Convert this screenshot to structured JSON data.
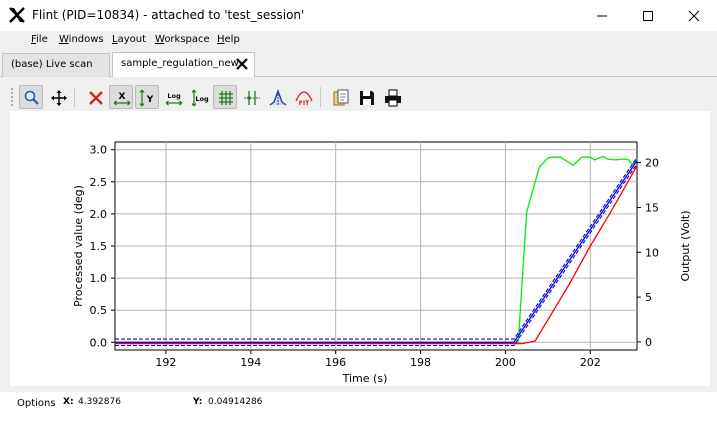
{
  "window": {
    "title": "Flint (PID=10834) - attached to 'test_session'",
    "controls": [
      "minimize",
      "maximize",
      "close"
    ]
  },
  "menu": [
    {
      "first": "F",
      "rest": "ile"
    },
    {
      "first": "W",
      "rest": "indows"
    },
    {
      "first": "L",
      "rest": "ayout"
    },
    {
      "first": "W",
      "rest": "orkspace"
    },
    {
      "first": "H",
      "rest": "elp"
    }
  ],
  "tabs": [
    {
      "label": "(base) Live scan",
      "active": false
    },
    {
      "label": "sample_regulation_new",
      "active": true,
      "closable": true
    }
  ],
  "toolbar": {
    "buttons": [
      {
        "icon": "zoom-icon",
        "checked": true
      },
      {
        "icon": "pan-icon",
        "checked": false
      },
      {
        "icon": "clear-icon",
        "checked": false
      },
      {
        "icon": "autoscale-x-icon",
        "checked": true,
        "text": "X"
      },
      {
        "icon": "autoscale-y-icon",
        "checked": true,
        "text": "Y"
      },
      {
        "icon": "log-x-icon",
        "checked": false,
        "text": "Log"
      },
      {
        "icon": "log-y-icon",
        "checked": false,
        "text": "Log"
      },
      {
        "icon": "grid-icon",
        "checked": true
      },
      {
        "icon": "marker-icon",
        "checked": false
      },
      {
        "icon": "peak-icon",
        "checked": false
      },
      {
        "icon": "fit-icon",
        "checked": false,
        "text": "FIT"
      },
      {
        "icon": "copy-icon",
        "checked": false
      },
      {
        "icon": "save-icon",
        "checked": false
      },
      {
        "icon": "print-icon",
        "checked": false
      }
    ]
  },
  "chart_data": {
    "type": "line",
    "xlabel": "Time (s)",
    "ylabel": "Processed value (deg)",
    "y2label": "Output (Volt)",
    "xlim": [
      190.8,
      203.1
    ],
    "ylim": [
      -0.12,
      3.12
    ],
    "y2lim": [
      -0.9,
      22.3
    ],
    "xticks": [
      "192",
      "194",
      "196",
      "198",
      "200",
      "202"
    ],
    "yticks": [
      "0.0",
      "0.5",
      "1.0",
      "1.5",
      "2.0",
      "2.5",
      "3.0"
    ],
    "y2ticks": [
      "0",
      "5",
      "10",
      "15",
      "20"
    ],
    "grid": true,
    "colors": {
      "setpoint": "#0000ff",
      "process": "#ff0000",
      "output": "#00ee00",
      "bounds": "#0000cc"
    },
    "series": [
      {
        "axis": "y2",
        "style": "green",
        "x": [
          190.8,
          200.3,
          200.5,
          200.8,
          201.0,
          201.1,
          201.3,
          201.6,
          201.8,
          202.0,
          202.1,
          202.3,
          202.4,
          202.6,
          202.8,
          202.9,
          203.0,
          203.1
        ],
        "y": [
          -0.1,
          -0.1,
          14.5,
          19.5,
          20.5,
          20.6,
          20.6,
          19.7,
          20.6,
          20.6,
          20.3,
          20.7,
          20.4,
          20.3,
          20.4,
          20.3,
          19.8,
          20.4
        ]
      },
      {
        "axis": "y",
        "style": "red",
        "x": [
          190.8,
          200.4,
          200.7,
          201.0,
          201.5,
          202.0,
          202.5,
          203.1
        ],
        "y": [
          -0.02,
          -0.02,
          0.02,
          0.35,
          0.9,
          1.5,
          2.05,
          2.75
        ]
      },
      {
        "axis": "y",
        "style": "blue",
        "x": [
          190.8,
          200.2,
          203.1
        ],
        "y": [
          0.0,
          0.0,
          2.83
        ]
      },
      {
        "axis": "y",
        "style": "blue-dash",
        "x": [
          190.8,
          200.2,
          203.1
        ],
        "y": [
          0.05,
          0.05,
          2.88
        ]
      },
      {
        "axis": "y",
        "style": "blue-dash",
        "x": [
          190.8,
          200.2,
          203.1
        ],
        "y": [
          -0.05,
          -0.05,
          2.78
        ]
      }
    ]
  },
  "status": {
    "options_label": "Options",
    "x_label": "X:",
    "x_value": "4.392876",
    "y_label": "Y:",
    "y_value": "0.04914286"
  }
}
